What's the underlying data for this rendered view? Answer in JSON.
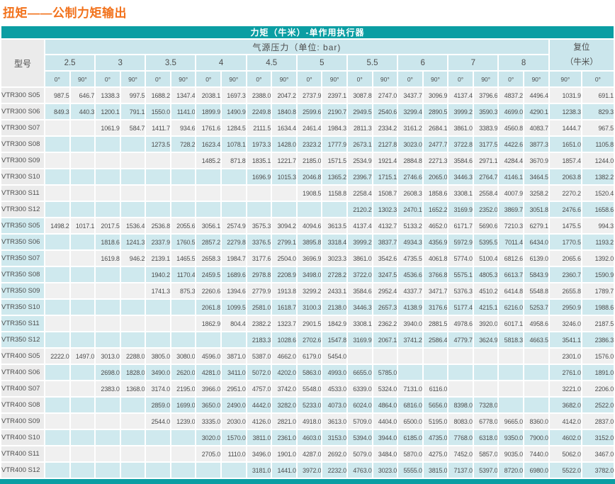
{
  "title": "扭矩——公制力矩输出",
  "colors": {
    "title_orange": "#f2721c",
    "teal": "#0b9ea3",
    "header_blue": "#cbe6ec",
    "stripe_blue": "#cfe9ee",
    "stripe_gray": "#f0f0f0",
    "model_gray": "#ebebeb",
    "text_dark": "#4d4d4d"
  },
  "table": {
    "banner": "力矩（牛米）-单作用执行器",
    "model_header": "型号",
    "pressure_header": "气源压力（单位: bar)",
    "reset_header_line1": "复位",
    "reset_header_line2": "（牛米）",
    "pressures": [
      "2.5",
      "3",
      "3.5",
      "4",
      "4.5",
      "5",
      "5.5",
      "6",
      "7",
      "8"
    ],
    "degree_pair": [
      "0°",
      "90°"
    ],
    "reset_degrees": [
      "90°",
      "0°"
    ],
    "sections": [
      {
        "name": "VTR300",
        "rows": [
          {
            "model": "VTR300 S05",
            "values": [
              "987.5",
              "646.7",
              "1338.3",
              "997.5",
              "1688.2",
              "1347.4",
              "2038.1",
              "1697.3",
              "2388.0",
              "2047.2",
              "2737.9",
              "2397.1",
              "3087.8",
              "2747.0",
              "3437.7",
              "3096.9",
              "4137.4",
              "3796.6",
              "4837.2",
              "4496.4",
              "1031.9",
              "691.1"
            ]
          },
          {
            "model": "VTR300 S06",
            "values": [
              "849.3",
              "440.3",
              "1200.1",
              "791.1",
              "1550.0",
              "1141.0",
              "1899.9",
              "1490.9",
              "2249.8",
              "1840.8",
              "2599.6",
              "2190.7",
              "2949.5",
              "2540.6",
              "3299.4",
              "2890.5",
              "3999.2",
              "3590.3",
              "4699.0",
              "4290.1",
              "1238.3",
              "829.3"
            ]
          },
          {
            "model": "VTR300 S07",
            "values": [
              "",
              "",
              "1061.9",
              "584.7",
              "1411.7",
              "934.6",
              "1761.6",
              "1284.5",
              "2111.5",
              "1634.4",
              "2461.4",
              "1984.3",
              "2811.3",
              "2334.2",
              "3161.2",
              "2684.1",
              "3861.0",
              "3383.9",
              "4560.8",
              "4083.7",
              "1444.7",
              "967.5"
            ]
          },
          {
            "model": "VTR300 S08",
            "values": [
              "",
              "",
              "",
              "",
              "1273.5",
              "728.2",
              "1623.4",
              "1078.1",
              "1973.3",
              "1428.0",
              "2323.2",
              "1777.9",
              "2673.1",
              "2127.8",
              "3023.0",
              "2477.7",
              "3722.8",
              "3177.5",
              "4422.6",
              "3877.3",
              "1651.0",
              "1105.8"
            ]
          },
          {
            "model": "VTR300 S09",
            "values": [
              "",
              "",
              "",
              "",
              "",
              "",
              "1485.2",
              "871.8",
              "1835.1",
              "1221.7",
              "2185.0",
              "1571.5",
              "2534.9",
              "1921.4",
              "2884.8",
              "2271.3",
              "3584.6",
              "2971.1",
              "4284.4",
              "3670.9",
              "1857.4",
              "1244.0"
            ]
          },
          {
            "model": "VTR300 S10",
            "values": [
              "",
              "",
              "",
              "",
              "",
              "",
              "",
              "",
              "1696.9",
              "1015.3",
              "2046.8",
              "1365.2",
              "2396.7",
              "1715.1",
              "2746.6",
              "2065.0",
              "3446.3",
              "2764.7",
              "4146.1",
              "3464.5",
              "2063.8",
              "1382.2"
            ]
          },
          {
            "model": "VTR300 S11",
            "values": [
              "",
              "",
              "",
              "",
              "",
              "",
              "",
              "",
              "",
              "",
              "1908.5",
              "1158.8",
              "2258.4",
              "1508.7",
              "2608.3",
              "1858.6",
              "3308.1",
              "2558.4",
              "4007.9",
              "3258.2",
              "2270.2",
              "1520.4"
            ]
          },
          {
            "model": "VTR300 S12",
            "values": [
              "",
              "",
              "",
              "",
              "",
              "",
              "",
              "",
              "",
              "",
              "",
              "",
              "2120.2",
              "1302.3",
              "2470.1",
              "1652.2",
              "3169.9",
              "2352.0",
              "3869.7",
              "3051.8",
              "2476.6",
              "1658.6"
            ]
          }
        ]
      },
      {
        "name": "VTR350",
        "rows": [
          {
            "model": "VTR350 S05",
            "values": [
              "1498.2",
              "1017.1",
              "2017.5",
              "1536.4",
              "2536.8",
              "2055.6",
              "3056.1",
              "2574.9",
              "3575.3",
              "3094.2",
              "4094.6",
              "3613.5",
              "4137.4",
              "4132.7",
              "5133.2",
              "4652.0",
              "6171.7",
              "5690.6",
              "7210.3",
              "6279.1",
              "1475.5",
              "994.3"
            ]
          },
          {
            "model": "VTR350 S06",
            "values": [
              "",
              "",
              "1818.6",
              "1241.3",
              "2337.9",
              "1760.5",
              "2857.2",
              "2279.8",
              "3376.5",
              "2799.1",
              "3895.8",
              "3318.4",
              "3999.2",
              "3837.7",
              "4934.3",
              "4356.9",
              "5972.9",
              "5395.5",
              "7011.4",
              "6434.0",
              "1770.5",
              "1193.2"
            ]
          },
          {
            "model": "VTR350 S07",
            "values": [
              "",
              "",
              "1619.8",
              "946.2",
              "2139.1",
              "1465.5",
              "2658.3",
              "1984.7",
              "3177.6",
              "2504.0",
              "3696.9",
              "3023.3",
              "3861.0",
              "3542.6",
              "4735.5",
              "4061.8",
              "5774.0",
              "5100.4",
              "6812.6",
              "6139.0",
              "2065.6",
              "1392.0"
            ]
          },
          {
            "model": "VTR350 S08",
            "values": [
              "",
              "",
              "",
              "",
              "1940.2",
              "1170.4",
              "2459.5",
              "1689.6",
              "2978.8",
              "2208.9",
              "3498.0",
              "2728.2",
              "3722.0",
              "3247.5",
              "4536.6",
              "3766.8",
              "5575.1",
              "4805.3",
              "6613.7",
              "5843.9",
              "2360.7",
              "1590.9"
            ]
          },
          {
            "model": "VTR350 S09",
            "values": [
              "",
              "",
              "",
              "",
              "1741.3",
              "875.3",
              "2260.6",
              "1394.6",
              "2779.9",
              "1913.8",
              "3299.2",
              "2433.1",
              "3584.6",
              "2952.4",
              "4337.7",
              "3471.7",
              "5376.3",
              "4510.2",
              "6414.8",
              "5548.8",
              "2655.8",
              "1789.7"
            ]
          },
          {
            "model": "VTR350 S10",
            "values": [
              "",
              "",
              "",
              "",
              "",
              "",
              "2061.8",
              "1099.5",
              "2581.0",
              "1618.7",
              "3100.3",
              "2138.0",
              "3446.3",
              "2657.3",
              "4138.9",
              "3176.6",
              "5177.4",
              "4215.1",
              "6216.0",
              "5253.7",
              "2950.9",
              "1988.6"
            ]
          },
          {
            "model": "VTR350 S11",
            "values": [
              "",
              "",
              "",
              "",
              "",
              "",
              "1862.9",
              "804.4",
              "2382.2",
              "1323.7",
              "2901.5",
              "1842.9",
              "3308.1",
              "2362.2",
              "3940.0",
              "2881.5",
              "4978.6",
              "3920.0",
              "6017.1",
              "4958.6",
              "3246.0",
              "2187.5"
            ]
          },
          {
            "model": "VTR350 S12",
            "values": [
              "",
              "",
              "",
              "",
              "",
              "",
              "",
              "",
              "2183.3",
              "1028.6",
              "2702.6",
              "1547.8",
              "3169.9",
              "2067.1",
              "3741.2",
              "2586.4",
              "4779.7",
              "3624.9",
              "5818.3",
              "4663.5",
              "3541.1",
              "2386.3"
            ]
          }
        ]
      },
      {
        "name": "VTR400",
        "rows": [
          {
            "model": "VTR400 S05",
            "values": [
              "2222.0",
              "1497.0",
              "3013.0",
              "2288.0",
              "3805.0",
              "3080.0",
              "4596.0",
              "3871.0",
              "5387.0",
              "4662.0",
              "6179.0",
              "5454.0",
              "",
              "",
              "",
              "",
              "",
              "",
              "",
              "",
              "2301.0",
              "1576.0"
            ]
          },
          {
            "model": "VTR400 S06",
            "values": [
              "",
              "",
              "2698.0",
              "1828.0",
              "3490.0",
              "2620.0",
              "4281.0",
              "3411.0",
              "5072.0",
              "4202.0",
              "5863.0",
              "4993.0",
              "6655.0",
              "5785.0",
              "",
              "",
              "",
              "",
              "",
              "",
              "2761.0",
              "1891.0"
            ]
          },
          {
            "model": "VTR400 S07",
            "values": [
              "",
              "",
              "2383.0",
              "1368.0",
              "3174.0",
              "2195.0",
              "3966.0",
              "2951.0",
              "4757.0",
              "3742.0",
              "5548.0",
              "4533.0",
              "6339.0",
              "5324.0",
              "7131.0",
              "6116.0",
              "",
              "",
              "",
              "",
              "3221.0",
              "2206.0"
            ]
          },
          {
            "model": "VTR400 S08",
            "values": [
              "",
              "",
              "",
              "",
              "2859.0",
              "1699.0",
              "3650.0",
              "2490.0",
              "4442.0",
              "3282.0",
              "5233.0",
              "4073.0",
              "6024.0",
              "4864.0",
              "6816.0",
              "5656.0",
              "8398.0",
              "7328.0",
              "",
              "",
              "3682.0",
              "2522.0"
            ]
          },
          {
            "model": "VTR400 S09",
            "values": [
              "",
              "",
              "",
              "",
              "2544.0",
              "1239.0",
              "3335.0",
              "2030.0",
              "4126.0",
              "2821.0",
              "4918.0",
              "3613.0",
              "5709.0",
              "4404.0",
              "6500.0",
              "5195.0",
              "8083.0",
              "6778.0",
              "9665.0",
              "8360.0",
              "4142.0",
              "2837.0"
            ]
          },
          {
            "model": "VTR400 S10",
            "values": [
              "",
              "",
              "",
              "",
              "",
              "",
              "3020.0",
              "1570.0",
              "3811.0",
              "2361.0",
              "4603.0",
              "3153.0",
              "5394.0",
              "3944.0",
              "6185.0",
              "4735.0",
              "7768.0",
              "6318.0",
              "9350.0",
              "7900.0",
              "4602.0",
              "3152.0"
            ]
          },
          {
            "model": "VTR400 S11",
            "values": [
              "",
              "",
              "",
              "",
              "",
              "",
              "2705.0",
              "1110.0",
              "3496.0",
              "1901.0",
              "4287.0",
              "2692.0",
              "5079.0",
              "3484.0",
              "5870.0",
              "4275.0",
              "7452.0",
              "5857.0",
              "9035.0",
              "7440.0",
              "5062.0",
              "3467.0"
            ]
          },
          {
            "model": "VTR400 S12",
            "values": [
              "",
              "",
              "",
              "",
              "",
              "",
              "",
              "",
              "3181.0",
              "1441.0",
              "3972.0",
              "2232.0",
              "4763.0",
              "3023.0",
              "5555.0",
              "3815.0",
              "7137.0",
              "5397.0",
              "8720.0",
              "6980.0",
              "5522.0",
              "3782.0"
            ]
          }
        ]
      }
    ]
  }
}
